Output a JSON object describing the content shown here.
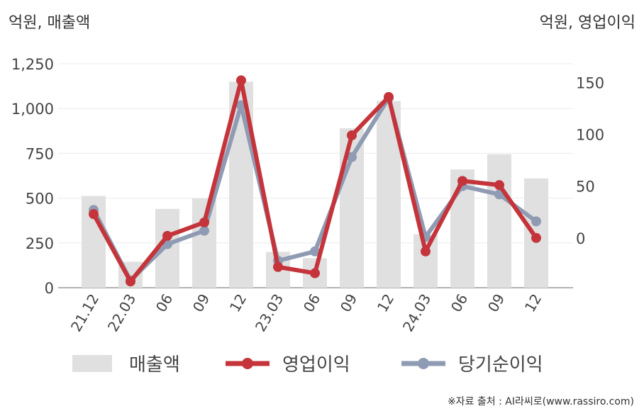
{
  "left_unit_label": "억원, 매출액",
  "right_unit_label": "억원, 영업이익",
  "source_text": "※자료 출처 : AI라씨로(www.rassiro.com)",
  "chart_data": {
    "type": "bar",
    "categories": [
      "21.12",
      "22.03",
      "06",
      "09",
      "12",
      "23.03",
      "06",
      "09",
      "12",
      "24.03",
      "06",
      "09",
      "12"
    ],
    "left_axis": {
      "min": 0,
      "max": 1250,
      "ticks": [
        0,
        250,
        500,
        750,
        1000,
        1250
      ],
      "tick_labels": [
        "0",
        "250",
        "500",
        "750",
        "1,000",
        "1,250"
      ]
    },
    "right_axis": {
      "min": -48,
      "max": 168,
      "ticks": [
        0,
        50,
        100,
        150
      ],
      "tick_labels": [
        "0",
        "50",
        "100",
        "150"
      ]
    },
    "series": [
      {
        "name": "매출액",
        "type": "bar",
        "axis": "left",
        "color": "#e0e0e0",
        "values": [
          512,
          145,
          440,
          498,
          1150,
          200,
          165,
          890,
          1042,
          298,
          660,
          745,
          610
        ]
      },
      {
        "name": "영업이익",
        "type": "line",
        "axis": "right",
        "color": "#c4343a",
        "values": [
          23,
          -42,
          2,
          15,
          152,
          -28,
          -34,
          99,
          136,
          -13,
          55,
          51,
          0
        ]
      },
      {
        "name": "당기순이익",
        "type": "line",
        "axis": "right",
        "color": "#8f9bb3",
        "values": [
          27,
          -41,
          -6,
          7,
          128,
          -22,
          -13,
          78,
          135,
          1,
          50,
          42,
          16
        ]
      }
    ],
    "grid": true,
    "legend_position": "bottom"
  }
}
